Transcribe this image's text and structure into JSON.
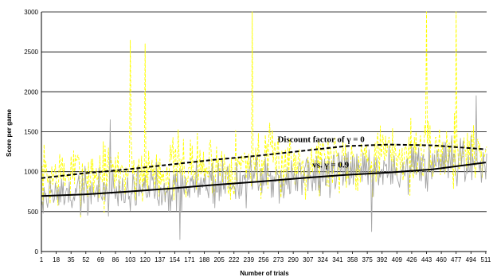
{
  "chart_data": {
    "type": "line",
    "xlabel": "Number of trials",
    "ylabel": "Score per game",
    "ylim": [
      0,
      3000
    ],
    "yticks": [
      "0",
      "500",
      "1000",
      "1500",
      "2000",
      "2500",
      "3000"
    ],
    "xlim": [
      1,
      512
    ],
    "xticks": [
      "1",
      "18",
      "35",
      "52",
      "69",
      "86",
      "103",
      "120",
      "137",
      "154",
      "171",
      "188",
      "205",
      "222",
      "239",
      "256",
      "273",
      "290",
      "307",
      "324",
      "341",
      "358",
      "375",
      "392",
      "409",
      "426",
      "443",
      "460",
      "477",
      "494",
      "511"
    ],
    "grid": "horizontal",
    "legend": "none",
    "annotations": [
      {
        "text": "Discount factor of γ = 0",
        "x": 272,
        "y": 1370
      },
      {
        "text": "vs. γ = 0.9",
        "x": 312,
        "y": 1050
      }
    ],
    "series": [
      {
        "role": "raw scores, γ = 0",
        "color": "#FFFF00",
        "style": "dashed",
        "seed": 7,
        "mean_start": 930,
        "mean_end": 1280,
        "spread": 460,
        "spikes": [
          [
            103,
            2650
          ],
          [
            243,
            3000
          ],
          [
            443,
            3000
          ],
          [
            477,
            3000
          ],
          [
            120,
            2600
          ]
        ]
      },
      {
        "role": "raw scores, γ = 0.9",
        "color": "#A6A6A6",
        "style": "solid",
        "seed": 19,
        "mean_start": 700,
        "mean_end": 1100,
        "spread": 330,
        "spikes": [
          [
            80,
            1650
          ],
          [
            500,
            1950
          ],
          [
            380,
            250
          ],
          [
            160,
            150
          ]
        ]
      },
      {
        "role": "trend, γ = 0",
        "color": "#000000",
        "style": "dashed",
        "x": [
          1,
          50,
          100,
          150,
          200,
          250,
          300,
          350,
          400,
          450,
          511
        ],
        "y": [
          920,
          980,
          1030,
          1090,
          1150,
          1200,
          1260,
          1320,
          1340,
          1330,
          1280
        ]
      },
      {
        "role": "trend, γ = 0.9",
        "color": "#000000",
        "style": "solid",
        "x": [
          1,
          50,
          100,
          150,
          200,
          250,
          300,
          350,
          400,
          450,
          511
        ],
        "y": [
          695,
          715,
          750,
          790,
          835,
          875,
          920,
          960,
          990,
          1030,
          1115
        ]
      }
    ]
  }
}
